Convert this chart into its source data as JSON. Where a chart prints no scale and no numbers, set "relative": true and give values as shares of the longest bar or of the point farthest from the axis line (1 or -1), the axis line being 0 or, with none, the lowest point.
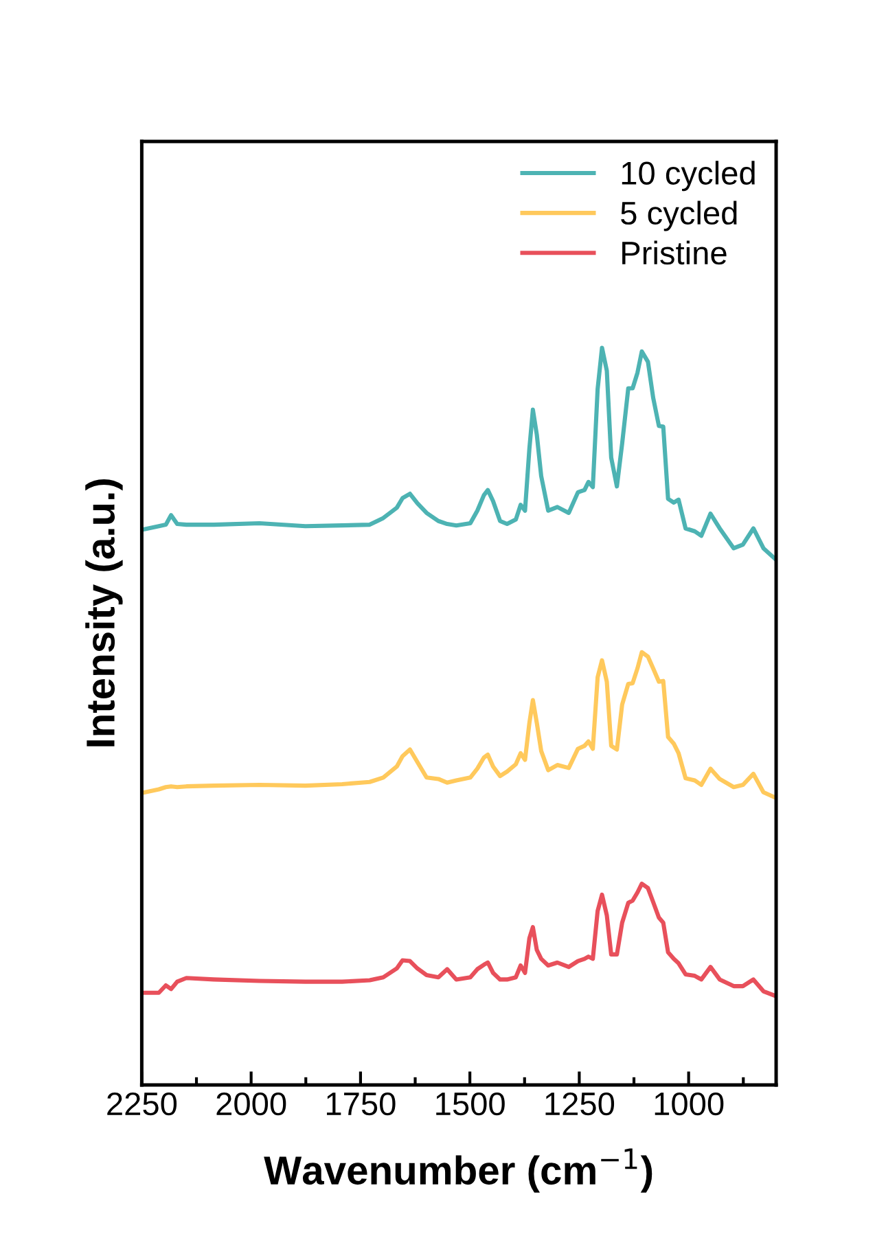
{
  "chart_data": {
    "type": "line",
    "xlabel": "Wavenumber (cm$^{−1}$)",
    "ylabel": "Intensity (a.u.)",
    "relative": true,
    "tick_labels": "x",
    "legend": "top right",
    "grid": false,
    "xlim": [
      2250,
      800
    ],
    "xticks": [
      2250,
      {
        "value": 2125,
        "label": null
      },
      2000,
      {
        "value": 1875,
        "label": null
      },
      1750,
      {
        "value": 1625,
        "label": null
      },
      1500,
      {
        "value": 1375,
        "label": null
      },
      1250,
      {
        "value": 1125,
        "label": null
      },
      1000,
      {
        "value": 875,
        "label": null
      }
    ],
    "x": [
      2250,
      2211,
      2195,
      2183,
      2169,
      2148,
      2085,
      1981,
      1876,
      1792,
      1729,
      1698,
      1667,
      1654,
      1637,
      1620,
      1599,
      1572,
      1552,
      1531,
      1499,
      1483,
      1468,
      1459,
      1447,
      1431,
      1415,
      1395,
      1384,
      1374,
      1364,
      1356,
      1347,
      1337,
      1321,
      1300,
      1274,
      1253,
      1238,
      1229,
      1219,
      1208,
      1198,
      1187,
      1177,
      1164,
      1152,
      1138,
      1128,
      1117,
      1107,
      1093,
      1081,
      1068,
      1058,
      1047,
      1034,
      1023,
      1007,
      986,
      971,
      950,
      929,
      897,
      876,
      852,
      829,
      803
    ],
    "series": [
      {
        "name": "10 cycled",
        "color": "#4db3b3",
        "values": [
          0.753,
          0.758,
          0.76,
          0.773,
          0.761,
          0.76,
          0.76,
          0.762,
          0.758,
          0.759,
          0.76,
          0.769,
          0.783,
          0.796,
          0.802,
          0.789,
          0.776,
          0.765,
          0.761,
          0.759,
          0.762,
          0.779,
          0.8,
          0.807,
          0.792,
          0.765,
          0.761,
          0.767,
          0.787,
          0.779,
          0.863,
          0.916,
          0.882,
          0.826,
          0.779,
          0.784,
          0.776,
          0.804,
          0.807,
          0.818,
          0.811,
          0.944,
          1,
          0.969,
          0.851,
          0.812,
          0.87,
          0.945,
          0.945,
          0.966,
          0.995,
          0.981,
          0.932,
          0.894,
          0.893,
          0.795,
          0.79,
          0.794,
          0.755,
          0.751,
          0.745,
          0.775,
          0.755,
          0.728,
          0.733,
          0.755,
          0.728,
          0.714
        ]
      },
      {
        "name": "5 cycled",
        "color": "#ffc95c",
        "values": [
          0.396,
          0.401,
          0.404,
          0.405,
          0.404,
          0.405,
          0.406,
          0.407,
          0.406,
          0.408,
          0.411,
          0.417,
          0.432,
          0.446,
          0.455,
          0.438,
          0.417,
          0.415,
          0.41,
          0.413,
          0.417,
          0.429,
          0.444,
          0.448,
          0.432,
          0.419,
          0.425,
          0.435,
          0.45,
          0.441,
          0.491,
          0.522,
          0.491,
          0.453,
          0.427,
          0.434,
          0.43,
          0.456,
          0.46,
          0.466,
          0.456,
          0.553,
          0.576,
          0.547,
          0.46,
          0.455,
          0.516,
          0.544,
          0.545,
          0.565,
          0.587,
          0.581,
          0.565,
          0.547,
          0.548,
          0.472,
          0.463,
          0.45,
          0.416,
          0.413,
          0.407,
          0.429,
          0.415,
          0.404,
          0.407,
          0.422,
          0.397,
          0.39
        ]
      },
      {
        "name": "Pristine",
        "color": "#e8505b",
        "values": [
          0.125,
          0.125,
          0.135,
          0.13,
          0.14,
          0.145,
          0.143,
          0.141,
          0.14,
          0.14,
          0.142,
          0.146,
          0.158,
          0.169,
          0.168,
          0.158,
          0.149,
          0.146,
          0.157,
          0.143,
          0.146,
          0.157,
          0.163,
          0.166,
          0.152,
          0.143,
          0.143,
          0.146,
          0.162,
          0.152,
          0.199,
          0.214,
          0.183,
          0.171,
          0.162,
          0.166,
          0.16,
          0.168,
          0.171,
          0.174,
          0.171,
          0.236,
          0.258,
          0.23,
          0.177,
          0.177,
          0.22,
          0.247,
          0.25,
          0.261,
          0.273,
          0.267,
          0.248,
          0.227,
          0.22,
          0.18,
          0.171,
          0.165,
          0.15,
          0.148,
          0.143,
          0.16,
          0.143,
          0.134,
          0.134,
          0.143,
          0.127,
          0.121
        ]
      }
    ]
  }
}
